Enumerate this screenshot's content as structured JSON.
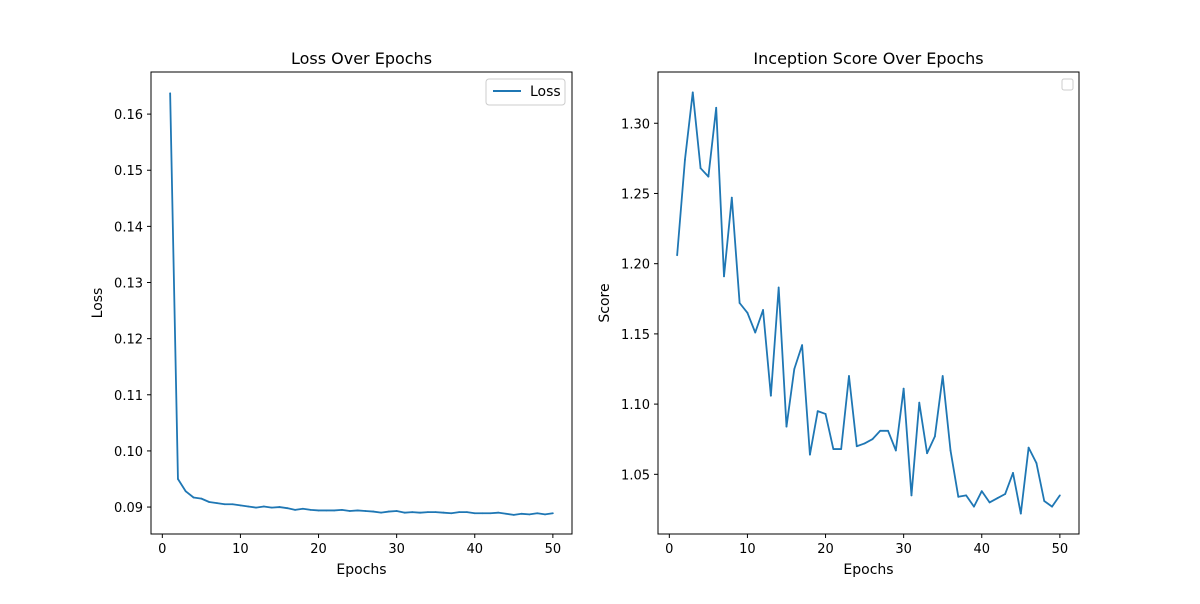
{
  "chart_data": [
    {
      "type": "line",
      "title": "Loss Over Epochs",
      "xlabel": "Epochs",
      "ylabel": "Loss",
      "xlim": [
        -1.45,
        52.45
      ],
      "ylim": [
        0.0852,
        0.1675
      ],
      "xticks": [
        0,
        10,
        20,
        30,
        40,
        50
      ],
      "xtick_labels": [
        "0",
        "10",
        "20",
        "30",
        "40",
        "50"
      ],
      "yticks": [
        0.09,
        0.1,
        0.11,
        0.12,
        0.13,
        0.14,
        0.15,
        0.16
      ],
      "ytick_labels": [
        "0.09",
        "0.10",
        "0.11",
        "0.12",
        "0.13",
        "0.14",
        "0.15",
        "0.16"
      ],
      "grid": false,
      "legend": "top-right",
      "series": [
        {
          "name": "Loss",
          "color": "#1f77b4",
          "x": [
            1,
            2,
            3,
            4,
            5,
            6,
            7,
            8,
            9,
            10,
            11,
            12,
            13,
            14,
            15,
            16,
            17,
            18,
            19,
            20,
            21,
            22,
            23,
            24,
            25,
            26,
            27,
            28,
            29,
            30,
            31,
            32,
            33,
            34,
            35,
            36,
            37,
            38,
            39,
            40,
            41,
            42,
            43,
            44,
            45,
            46,
            47,
            48,
            49,
            50
          ],
          "y": [
            0.1637,
            0.095,
            0.0928,
            0.0917,
            0.0915,
            0.0909,
            0.0907,
            0.0905,
            0.0905,
            0.0903,
            0.0901,
            0.0899,
            0.0901,
            0.0899,
            0.09,
            0.0898,
            0.0895,
            0.0897,
            0.0895,
            0.0894,
            0.0894,
            0.0894,
            0.0895,
            0.0893,
            0.0894,
            0.0893,
            0.0892,
            0.089,
            0.0892,
            0.0893,
            0.089,
            0.0891,
            0.089,
            0.0891,
            0.0891,
            0.089,
            0.0889,
            0.0891,
            0.0891,
            0.0889,
            0.0889,
            0.0889,
            0.089,
            0.0888,
            0.0886,
            0.0888,
            0.0887,
            0.0889,
            0.0887,
            0.0889
          ]
        }
      ]
    },
    {
      "type": "line",
      "title": "Inception Score Over Epochs",
      "xlabel": "Epochs",
      "ylabel": "Score",
      "xlim": [
        -1.45,
        52.45
      ],
      "ylim": [
        1.0075,
        1.3365
      ],
      "xticks": [
        0,
        10,
        20,
        30,
        40,
        50
      ],
      "xtick_labels": [
        "0",
        "10",
        "20",
        "30",
        "40",
        "50"
      ],
      "yticks": [
        1.05,
        1.1,
        1.15,
        1.2,
        1.25,
        1.3
      ],
      "ytick_labels": [
        "1.05",
        "1.10",
        "1.15",
        "1.20",
        "1.25",
        "1.30"
      ],
      "grid": false,
      "legend": "top-right (empty)",
      "series": [
        {
          "color": "#1f77b4",
          "x": [
            1,
            2,
            3,
            4,
            5,
            6,
            7,
            8,
            9,
            10,
            11,
            12,
            13,
            14,
            15,
            16,
            17,
            18,
            19,
            20,
            21,
            22,
            23,
            24,
            25,
            26,
            27,
            28,
            29,
            30,
            31,
            32,
            33,
            34,
            35,
            36,
            37,
            38,
            39,
            40,
            41,
            42,
            43,
            44,
            45,
            46,
            47,
            48,
            49,
            50
          ],
          "y": [
            1.206,
            1.274,
            1.322,
            1.268,
            1.262,
            1.311,
            1.191,
            1.247,
            1.172,
            1.165,
            1.151,
            1.167,
            1.106,
            1.183,
            1.084,
            1.125,
            1.142,
            1.064,
            1.095,
            1.093,
            1.068,
            1.068,
            1.12,
            1.07,
            1.072,
            1.075,
            1.081,
            1.081,
            1.067,
            1.111,
            1.035,
            1.101,
            1.065,
            1.077,
            1.12,
            1.067,
            1.034,
            1.035,
            1.027,
            1.038,
            1.03,
            1.033,
            1.036,
            1.051,
            1.022,
            1.069,
            1.058,
            1.031,
            1.027,
            1.035
          ]
        }
      ]
    }
  ]
}
